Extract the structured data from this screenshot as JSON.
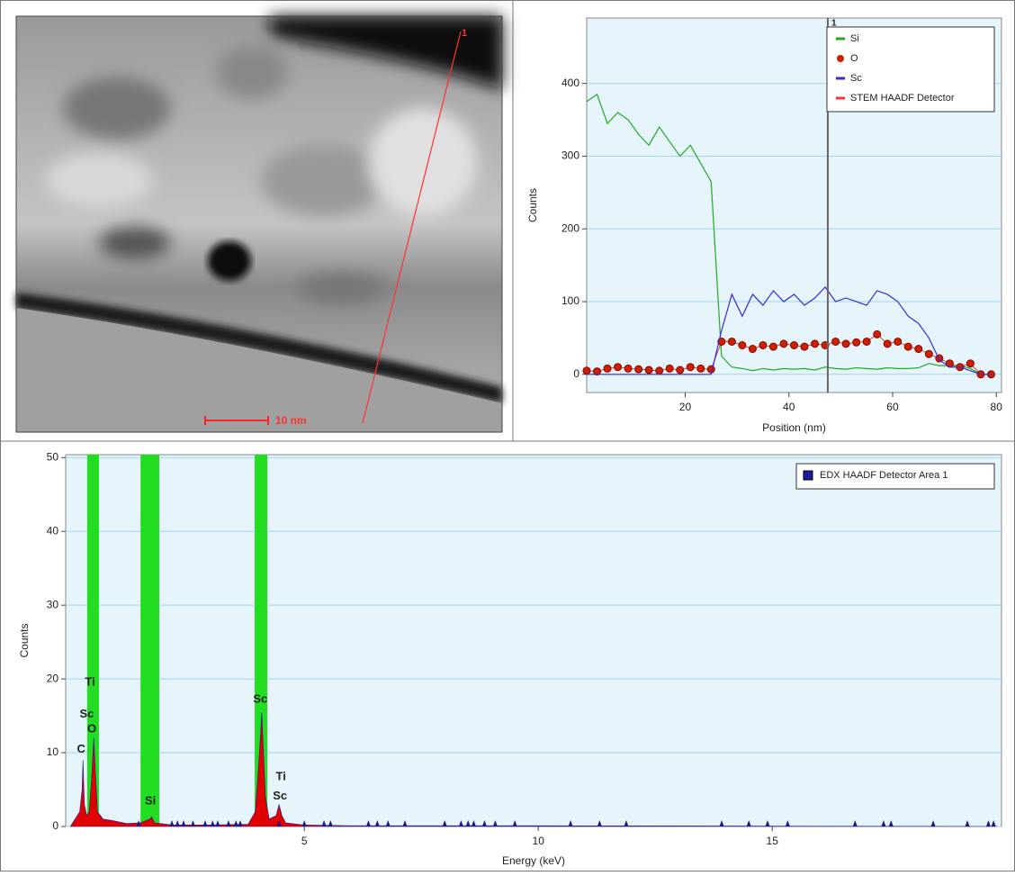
{
  "image": {
    "marker_label": "1",
    "scale_bar": "10 nm"
  },
  "chart_data": [
    {
      "type": "line",
      "x_label": "Position (nm)",
      "y_label": "Counts",
      "x": [
        1,
        3,
        5,
        7,
        9,
        11,
        13,
        15,
        17,
        19,
        21,
        23,
        25,
        27,
        29,
        31,
        33,
        35,
        37,
        39,
        41,
        43,
        45,
        47,
        49,
        51,
        53,
        55,
        57,
        59,
        61,
        63,
        65,
        67,
        69,
        71,
        73,
        75,
        77,
        79
      ],
      "series": [
        {
          "name": "Si",
          "color": "#22aa22",
          "values": [
            375,
            385,
            345,
            360,
            350,
            330,
            315,
            340,
            320,
            300,
            315,
            290,
            265,
            25,
            10,
            8,
            5,
            8,
            6,
            8,
            7,
            8,
            6,
            10,
            8,
            7,
            9,
            8,
            7,
            9,
            8,
            8,
            9,
            15,
            12,
            12,
            12,
            8,
            0,
            0
          ]
        },
        {
          "name": "O",
          "color": "#cc2200",
          "marker": "circle",
          "values": [
            5,
            4,
            8,
            10,
            8,
            7,
            6,
            5,
            8,
            6,
            10,
            8,
            7,
            45,
            45,
            40,
            35,
            40,
            38,
            42,
            40,
            38,
            42,
            40,
            45,
            42,
            44,
            45,
            55,
            42,
            45,
            38,
            35,
            28,
            22,
            15,
            10,
            15,
            0,
            0
          ]
        },
        {
          "name": "Sc",
          "color": "#3a2ad0",
          "values": [
            0,
            0,
            0,
            0,
            0,
            0,
            0,
            0,
            0,
            0,
            0,
            0,
            0,
            60,
            110,
            80,
            110,
            95,
            115,
            100,
            110,
            95,
            105,
            120,
            100,
            105,
            100,
            95,
            115,
            110,
            100,
            80,
            70,
            50,
            20,
            10,
            10,
            5,
            0,
            0
          ]
        },
        {
          "name": "STEM HAADF Detector",
          "color": "#ff3333",
          "values": [
            null,
            null,
            null,
            null,
            null,
            null,
            null,
            null,
            null,
            null,
            null,
            null,
            null,
            null,
            null,
            null,
            null,
            null,
            null,
            null,
            null,
            null,
            null,
            null,
            null,
            null,
            null,
            null,
            null,
            null,
            null,
            null,
            null,
            null,
            null,
            null,
            null,
            null,
            null,
            null
          ]
        }
      ],
      "cursor": {
        "x": 47.5,
        "label": "1",
        "color": "#666666"
      },
      "xlim": [
        1,
        81
      ],
      "xticks": [
        20,
        40,
        60,
        80
      ],
      "ylim": [
        -25,
        490
      ],
      "yticks": [
        0,
        100,
        200,
        300,
        400
      ],
      "grid": true,
      "legend": "upper right"
    },
    {
      "type": "area",
      "x_label": "Energy (keV)",
      "y_label": "Counts",
      "x": [
        0,
        0.1,
        0.2,
        0.25,
        0.27,
        0.3,
        0.35,
        0.4,
        0.45,
        0.5,
        0.53,
        0.58,
        0.7,
        0.9,
        1.2,
        1.5,
        1.7,
        1.74,
        1.8,
        2.2,
        3.0,
        3.8,
        3.95,
        4.02,
        4.06,
        4.09,
        4.12,
        4.17,
        4.25,
        4.4,
        4.46,
        4.52,
        4.6,
        5.0,
        6.0,
        10,
        19.8
      ],
      "series": [
        {
          "name": "EDX HAADF Detector Area 1",
          "color": "#1a1aa0",
          "fill": "#e00000",
          "values": [
            0,
            1,
            2,
            5,
            9,
            3,
            1.5,
            2,
            6,
            12,
            8,
            2,
            1,
            0.8,
            0.4,
            0.5,
            1,
            1.3,
            0.5,
            0.2,
            0.2,
            0.3,
            2,
            8,
            12,
            15.5,
            11,
            4,
            1,
            1.5,
            3,
            1.5,
            0.5,
            0.2,
            0.1,
            0.1,
            0
          ]
        }
      ],
      "highlights": [
        {
          "start": 0.36,
          "end": 0.61
        },
        {
          "start": 1.5,
          "end": 1.9
        },
        {
          "start": 3.94,
          "end": 4.21
        }
      ],
      "highlight_color": "#22dd22",
      "line_markers": [
        1.46,
        2.17,
        2.29,
        2.42,
        2.62,
        2.88,
        3.04,
        3.15,
        3.38,
        3.54,
        3.63,
        4.46,
        5.0,
        5.42,
        5.56,
        6.37,
        6.56,
        6.79,
        7.15,
        8.0,
        8.35,
        8.5,
        8.62,
        8.85,
        9.08,
        9.5,
        10.69,
        11.31,
        11.88,
        13.92,
        14.5,
        14.9,
        15.33,
        16.77,
        17.38,
        17.54,
        18.44,
        19.17,
        19.62,
        19.73
      ],
      "marker_color": "#1a1a80",
      "annotations": [
        {
          "text": "C",
          "x": 0.23,
          "y": 10.4
        },
        {
          "text": "Sc",
          "x": 0.35,
          "y": 15.2
        },
        {
          "text": "O",
          "x": 0.46,
          "y": 13.2
        },
        {
          "text": "Ti",
          "x": 0.42,
          "y": 19.5
        },
        {
          "text": "Si",
          "x": 1.71,
          "y": 3.4
        },
        {
          "text": "Sc",
          "x": 4.06,
          "y": 17.2
        },
        {
          "text": "Ti",
          "x": 4.5,
          "y": 6.7
        },
        {
          "text": "Sc",
          "x": 4.48,
          "y": 4.1
        }
      ],
      "xlim": [
        -0.1,
        19.9
      ],
      "xticks": [
        5,
        10,
        15
      ],
      "ylim": [
        0,
        50.4
      ],
      "yticks": [
        0,
        10,
        20,
        30,
        40,
        50
      ],
      "grid": true,
      "legend": "upper right"
    }
  ]
}
